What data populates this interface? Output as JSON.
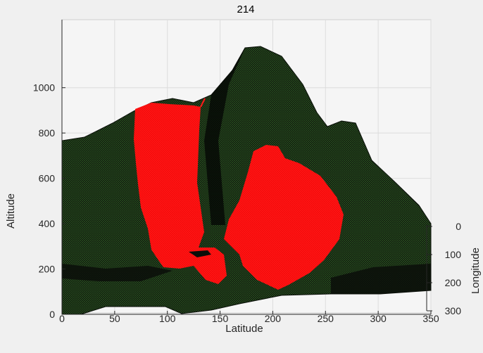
{
  "chart_data": {
    "type": "surface",
    "title": "214",
    "xlabel": "Latitude",
    "ylabel": "Altitude",
    "zlabel": "Longitude",
    "x_ticks": [
      0,
      50,
      100,
      150,
      200,
      250,
      300,
      350
    ],
    "y_ticks": [
      0,
      200,
      400,
      600,
      800,
      1000
    ],
    "z_ticks": [
      0,
      100,
      200,
      300
    ],
    "xlim": [
      0,
      350
    ],
    "ylim": [
      0,
      1300
    ],
    "zlim": [
      0,
      300
    ],
    "grid": true,
    "surface_color": "#1f3d1a",
    "highlight_color": "#ff1a1a",
    "terrain_profile": {
      "x": [
        0,
        20,
        50,
        75,
        100,
        120,
        135,
        150,
        165,
        175,
        185,
        200,
        220,
        240,
        265,
        290,
        310,
        330,
        350
      ],
      "altitude": [
        820,
        840,
        880,
        970,
        1030,
        1040,
        990,
        1080,
        1240,
        1290,
        1270,
        1150,
        980,
        920,
        900,
        760,
        650,
        520,
        420
      ]
    },
    "highlight_regions": [
      {
        "x_range": [
          70,
          140
        ],
        "altitude_range": [
          220,
          1010
        ]
      },
      {
        "x_range": [
          155,
          275
        ],
        "altitude_range": [
          130,
          840
        ]
      }
    ]
  }
}
